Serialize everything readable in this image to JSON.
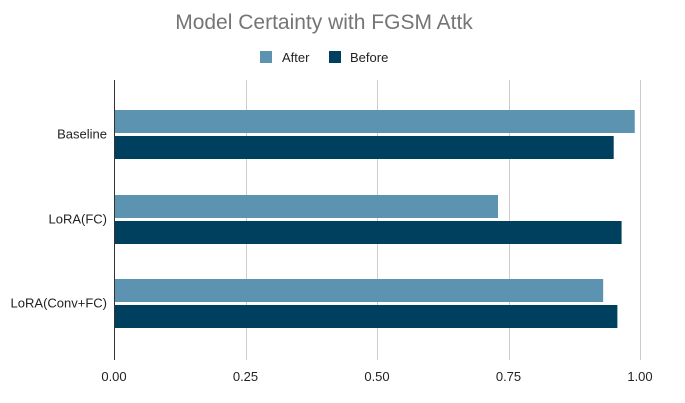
{
  "chart_data": {
    "type": "bar",
    "orientation": "horizontal",
    "title": "Model Certainty with FGSM Attk",
    "categories": [
      "Baseline",
      "LoRA(FC)",
      "LoRA(Conv+FC)"
    ],
    "series": [
      {
        "name": "After",
        "color": "#5b93b1",
        "values": [
          0.99,
          0.73,
          0.93
        ]
      },
      {
        "name": "Before",
        "color": "#00405f",
        "values": [
          0.95,
          0.965,
          0.957
        ]
      }
    ],
    "xlim": [
      0,
      1
    ],
    "xticks": [
      "0.00",
      "0.25",
      "0.50",
      "0.75",
      "1.00"
    ],
    "xtick_values": [
      0,
      0.25,
      0.5,
      0.75,
      1.0
    ],
    "grid": true,
    "legend_position": "top"
  }
}
